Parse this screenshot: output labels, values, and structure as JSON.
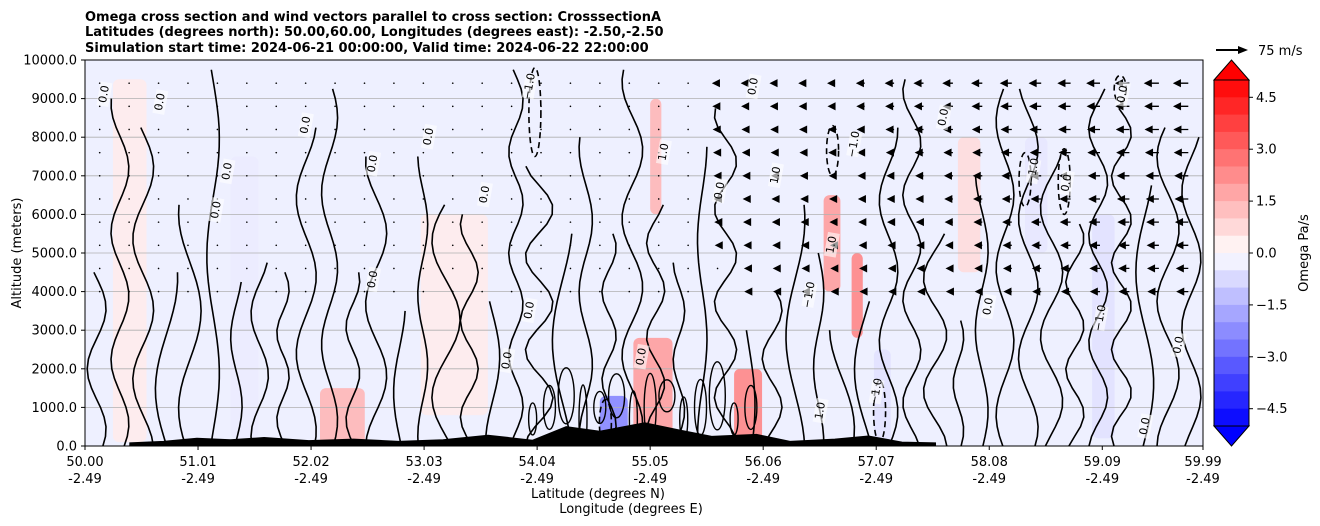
{
  "chart_data": {
    "type": "heatmap",
    "title_lines": [
      "Omega cross section and wind vectors parallel to cross section: CrosssectionA",
      "Latitudes (degrees north): 50.00,60.00, Longitudes (degrees east): -2.50,-2.50",
      "Simulation start time: 2024-06-21 00:00:00, Valid time: 2024-06-22 22:00:00"
    ],
    "ylabel": "Altitude (meters)",
    "xlabel_lines": [
      "Latitude (degrees N)",
      "Longitude (degrees E)"
    ],
    "y_ticks": [
      "0.0",
      "1000.0",
      "2000.0",
      "3000.0",
      "4000.0",
      "5000.0",
      "6000.0",
      "7000.0",
      "8000.0",
      "9000.0",
      "10000.0"
    ],
    "ylim": [
      0,
      10000
    ],
    "x_ticks": [
      {
        "lat": "50.00",
        "lon": "-2.49"
      },
      {
        "lat": "51.01",
        "lon": "-2.49"
      },
      {
        "lat": "52.02",
        "lon": "-2.49"
      },
      {
        "lat": "53.03",
        "lon": "-2.49"
      },
      {
        "lat": "54.04",
        "lon": "-2.49"
      },
      {
        "lat": "55.05",
        "lon": "-2.49"
      },
      {
        "lat": "56.06",
        "lon": "-2.49"
      },
      {
        "lat": "57.07",
        "lon": "-2.49"
      },
      {
        "lat": "58.08",
        "lon": "-2.49"
      },
      {
        "lat": "59.09",
        "lon": "-2.49"
      },
      {
        "lat": "59.99",
        "lon": "-2.49"
      }
    ],
    "xlim": [
      50.0,
      59.99
    ],
    "grid": "horizontal",
    "colorbar": {
      "label": "Omega Pa/s",
      "range": [
        -5.0,
        5.0
      ],
      "step": 0.5,
      "ticks": [
        "4.5",
        "3.0",
        "1.5",
        "0.0",
        "−1.5",
        "−3.0",
        "−4.5"
      ],
      "low_color": "#0000ff",
      "mid_color": "#ffffff",
      "high_color": "#ff0000"
    },
    "quiver_key": {
      "label": "75 m/s"
    },
    "omega_regions": [
      {
        "lat": [
          50.25,
          50.55
        ],
        "alt": [
          100,
          9500
        ],
        "omega": 0.4
      },
      {
        "lat": [
          51.3,
          51.55
        ],
        "alt": [
          200,
          7500
        ],
        "omega": -0.4
      },
      {
        "lat": [
          52.1,
          52.5
        ],
        "alt": [
          0,
          1500
        ],
        "omega": 1.5
      },
      {
        "lat": [
          53.0,
          53.6
        ],
        "alt": [
          800,
          6000
        ],
        "omega": 0.4
      },
      {
        "lat": [
          54.6,
          54.85
        ],
        "alt": [
          0,
          1300
        ],
        "omega": -2.5
      },
      {
        "lat": [
          54.9,
          55.25
        ],
        "alt": [
          0,
          2800
        ],
        "omega": 2.0
      },
      {
        "lat": [
          55.05,
          55.15
        ],
        "alt": [
          6000,
          9000
        ],
        "omega": 1.5
      },
      {
        "lat": [
          55.8,
          56.05
        ],
        "alt": [
          0,
          2000
        ],
        "omega": 2.5
      },
      {
        "lat": [
          56.6,
          56.75
        ],
        "alt": [
          4000,
          6500
        ],
        "omega": 2.0
      },
      {
        "lat": [
          56.85,
          56.95
        ],
        "alt": [
          2800,
          5000
        ],
        "omega": 2.5
      },
      {
        "lat": [
          57.05,
          57.2
        ],
        "alt": [
          0,
          2500
        ],
        "omega": -0.6
      },
      {
        "lat": [
          57.8,
          58.0
        ],
        "alt": [
          4500,
          8000
        ],
        "omega": 0.7
      },
      {
        "lat": [
          58.4,
          58.6
        ],
        "alt": [
          5000,
          8000
        ],
        "omega": -0.5
      },
      {
        "lat": [
          59.0,
          59.2
        ],
        "alt": [
          200,
          6000
        ],
        "omega": -0.6
      }
    ],
    "contour_labels": [
      {
        "lat": 50.2,
        "alt": 9100,
        "text": "0.0"
      },
      {
        "lat": 50.7,
        "alt": 8900,
        "text": "0.0"
      },
      {
        "lat": 51.2,
        "alt": 6100,
        "text": "0.0"
      },
      {
        "lat": 51.3,
        "alt": 7100,
        "text": "0.0"
      },
      {
        "lat": 52.0,
        "alt": 8300,
        "text": "0.0"
      },
      {
        "lat": 52.6,
        "alt": 7300,
        "text": "0.0"
      },
      {
        "lat": 53.1,
        "alt": 8000,
        "text": "0.0"
      },
      {
        "lat": 52.6,
        "alt": 4300,
        "text": "0.0"
      },
      {
        "lat": 53.6,
        "alt": 6500,
        "text": "0.0"
      },
      {
        "lat": 53.8,
        "alt": 2200,
        "text": "0.0"
      },
      {
        "lat": 54.0,
        "alt": 3500,
        "text": "0.0"
      },
      {
        "lat": 54.0,
        "alt": 9300,
        "text": "−1.0"
      },
      {
        "lat": 55.0,
        "alt": 2300,
        "text": "0.0"
      },
      {
        "lat": 55.2,
        "alt": 7600,
        "text": "1.0"
      },
      {
        "lat": 55.7,
        "alt": 6600,
        "text": "0.0"
      },
      {
        "lat": 56.2,
        "alt": 7000,
        "text": "1.0"
      },
      {
        "lat": 56.0,
        "alt": 9300,
        "text": "0.0"
      },
      {
        "lat": 56.5,
        "alt": 3900,
        "text": "−1.0"
      },
      {
        "lat": 56.7,
        "alt": 5200,
        "text": "1.0"
      },
      {
        "lat": 56.9,
        "alt": 7800,
        "text": "−1.0"
      },
      {
        "lat": 57.1,
        "alt": 1400,
        "text": "−1.0"
      },
      {
        "lat": 56.6,
        "alt": 900,
        "text": "1.0"
      },
      {
        "lat": 57.7,
        "alt": 8500,
        "text": "0.0"
      },
      {
        "lat": 58.1,
        "alt": 3600,
        "text": "0.0"
      },
      {
        "lat": 58.5,
        "alt": 7100,
        "text": "−1.0"
      },
      {
        "lat": 58.8,
        "alt": 6800,
        "text": "0.0"
      },
      {
        "lat": 59.1,
        "alt": 3300,
        "text": "−1.0"
      },
      {
        "lat": 59.3,
        "alt": 9100,
        "text": "0.0"
      },
      {
        "lat": 59.5,
        "alt": 500,
        "text": "0.0"
      },
      {
        "lat": 59.8,
        "alt": 2600,
        "text": "0.0"
      }
    ],
    "negative_contours": [
      {
        "lat": 54.02,
        "alt": [
          7500,
          9800
        ]
      },
      {
        "lat": 56.68,
        "alt": [
          7000,
          8300
        ]
      },
      {
        "lat": 58.4,
        "alt": [
          6200,
          7600
        ]
      },
      {
        "lat": 58.75,
        "alt": [
          6000,
          7700
        ]
      },
      {
        "lat": 59.25,
        "alt": [
          8900,
          9600
        ]
      },
      {
        "lat": 54.65,
        "alt": [
          0,
          1200
        ]
      },
      {
        "lat": 57.1,
        "alt": [
          100,
          1700
        ]
      }
    ],
    "terrain": [
      {
        "lat": 50.4,
        "h": 80
      },
      {
        "lat": 50.7,
        "h": 120
      },
      {
        "lat": 51.0,
        "h": 200
      },
      {
        "lat": 51.3,
        "h": 160
      },
      {
        "lat": 51.6,
        "h": 220
      },
      {
        "lat": 52.0,
        "h": 140
      },
      {
        "lat": 52.4,
        "h": 180
      },
      {
        "lat": 52.8,
        "h": 120
      },
      {
        "lat": 53.2,
        "h": 160
      },
      {
        "lat": 53.6,
        "h": 280
      },
      {
        "lat": 54.0,
        "h": 150
      },
      {
        "lat": 54.3,
        "h": 500
      },
      {
        "lat": 54.6,
        "h": 380
      },
      {
        "lat": 55.0,
        "h": 600
      },
      {
        "lat": 55.3,
        "h": 420
      },
      {
        "lat": 55.6,
        "h": 250
      },
      {
        "lat": 56.0,
        "h": 300
      },
      {
        "lat": 56.3,
        "h": 120
      },
      {
        "lat": 56.7,
        "h": 180
      },
      {
        "lat": 57.0,
        "h": 260
      },
      {
        "lat": 57.3,
        "h": 100
      },
      {
        "lat": 57.6,
        "h": 80
      }
    ]
  }
}
